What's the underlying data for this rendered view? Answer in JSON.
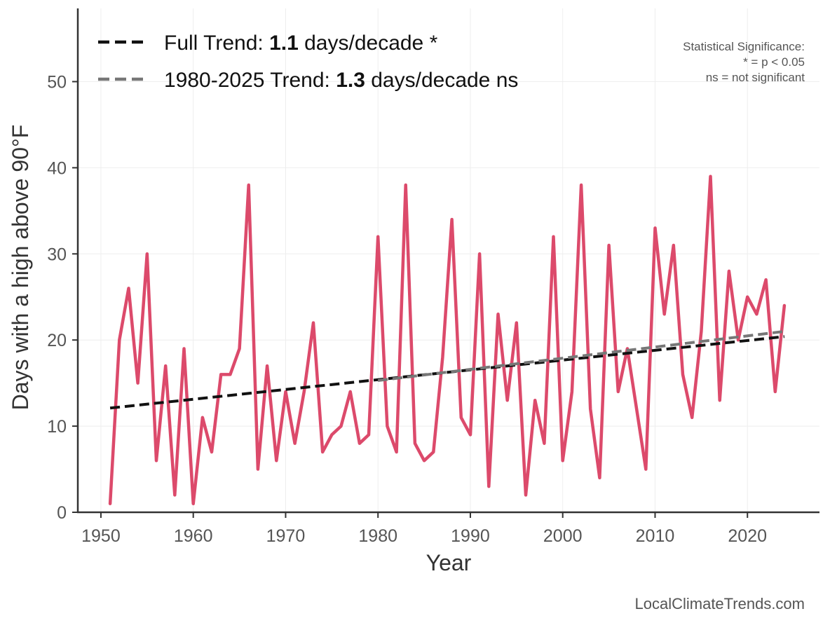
{
  "chart_data": {
    "type": "line",
    "xlabel": "Year",
    "ylabel": "Days with a high above 90°F",
    "xlim": [
      1947.5,
      2027.8
    ],
    "ylim": [
      0,
      58.5
    ],
    "x_ticks": [
      1950,
      1960,
      1970,
      1980,
      1990,
      2000,
      2010,
      2020
    ],
    "y_ticks": [
      0,
      10,
      20,
      30,
      40,
      50
    ],
    "grid": true,
    "legend_position": "top-left",
    "series": [
      {
        "color": "#DC4A6B",
        "style": "solid",
        "x": [
          1951,
          1952,
          1953,
          1954,
          1955,
          1956,
          1957,
          1958,
          1959,
          1960,
          1961,
          1962,
          1963,
          1964,
          1965,
          1966,
          1967,
          1968,
          1969,
          1970,
          1971,
          1972,
          1973,
          1974,
          1975,
          1976,
          1977,
          1978,
          1979,
          1980,
          1981,
          1982,
          1983,
          1984,
          1985,
          1986,
          1987,
          1988,
          1989,
          1990,
          1991,
          1992,
          1993,
          1994,
          1995,
          1996,
          1997,
          1998,
          1999,
          2000,
          2001,
          2002,
          2003,
          2004,
          2005,
          2006,
          2007,
          2008,
          2009,
          2010,
          2011,
          2012,
          2013,
          2014,
          2015,
          2016,
          2017,
          2018,
          2019,
          2020,
          2021,
          2022,
          2023,
          2024
        ],
        "values": [
          1,
          20,
          26,
          15,
          30,
          6,
          17,
          2,
          19,
          1,
          11,
          7,
          16,
          16,
          19,
          38,
          5,
          17,
          6,
          14,
          8,
          14,
          22,
          7,
          9,
          10,
          14,
          8,
          9,
          32,
          10,
          7,
          38,
          8,
          6,
          7,
          18,
          34,
          11,
          9,
          30,
          3,
          23,
          13,
          22,
          2,
          13,
          8,
          32,
          6,
          14,
          38,
          12,
          4,
          31,
          14,
          19,
          12,
          5,
          33,
          23,
          31,
          16,
          11,
          21,
          39,
          13,
          28,
          20,
          25,
          23,
          27,
          14,
          24
        ]
      },
      {
        "name": "Full Trend",
        "color": "#111111",
        "style": "dashed",
        "x": [
          1951,
          2024
        ],
        "values": [
          12.1,
          20.4
        ]
      },
      {
        "name": "1980-2025 Trend",
        "color": "#777777",
        "style": "dashed",
        "x": [
          1980,
          2024
        ],
        "values": [
          15.3,
          21.0
        ]
      }
    ],
    "legend": [
      {
        "prefix": "Full Trend: ",
        "value": "1.1",
        "suffix": " days/decade *",
        "color": "#111111"
      },
      {
        "prefix": "1980-2025 Trend: ",
        "value": "1.3",
        "suffix": " days/decade ns",
        "color": "#777777"
      }
    ],
    "annotations": {
      "significance": [
        "Statistical Significance:",
        "* = p < 0.05",
        "ns = not significant"
      ],
      "credit": "LocalClimateTrends.com"
    }
  }
}
